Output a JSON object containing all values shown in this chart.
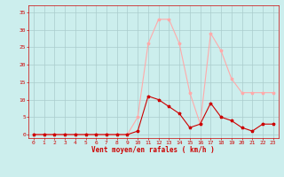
{
  "x": [
    0,
    1,
    2,
    3,
    4,
    5,
    6,
    7,
    8,
    9,
    10,
    11,
    12,
    13,
    14,
    15,
    16,
    17,
    18,
    19,
    20,
    21,
    22,
    23
  ],
  "wind_avg": [
    0,
    0,
    0,
    0,
    0,
    0,
    0,
    0,
    0,
    0,
    1,
    11,
    10,
    8,
    6,
    2,
    3,
    9,
    5,
    4,
    2,
    1,
    3,
    3
  ],
  "wind_gust": [
    0,
    0,
    0,
    0,
    0,
    0,
    0,
    0,
    0,
    0,
    5,
    26,
    33,
    33,
    26,
    12,
    3,
    29,
    24,
    16,
    12,
    12,
    12,
    12
  ],
  "bg_color": "#cceeed",
  "grid_color": "#aacccc",
  "line_avg_color": "#cc0000",
  "line_gust_color": "#ffaaaa",
  "marker_avg_color": "#cc0000",
  "marker_gust_color": "#ffaaaa",
  "xlabel": "Vent moyen/en rafales ( km/h )",
  "xlabel_color": "#cc0000",
  "tick_color": "#cc0000",
  "ylim": [
    -1,
    37
  ],
  "xlim": [
    -0.5,
    23.5
  ],
  "yticks": [
    0,
    5,
    10,
    15,
    20,
    25,
    30,
    35
  ],
  "xticks": [
    0,
    1,
    2,
    3,
    4,
    5,
    6,
    7,
    8,
    9,
    10,
    11,
    12,
    13,
    14,
    15,
    16,
    17,
    18,
    19,
    20,
    21,
    22,
    23
  ],
  "tick_fontsize": 4.5,
  "xlabel_fontsize": 5.5
}
